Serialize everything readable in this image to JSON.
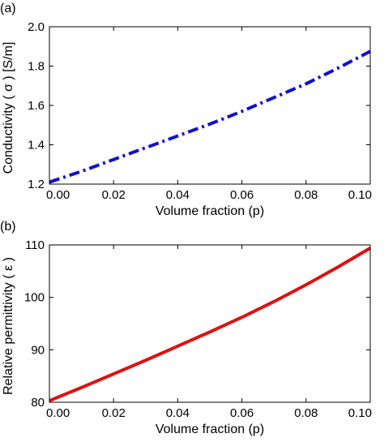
{
  "chart_data": [
    {
      "type": "line",
      "panel_label": "(a)",
      "xlabel": "Volume fraction (p)",
      "ylabel": "Conductivity ( σ ) [S/m]",
      "xlim": [
        0,
        0.1
      ],
      "ylim": [
        1.2,
        2.0
      ],
      "xticks": [
        "0.00",
        "0.02",
        "0.04",
        "0.06",
        "0.08",
        "0.10"
      ],
      "yticks": [
        "1.2",
        "1.4",
        "1.6",
        "1.8",
        "2.0"
      ],
      "grid": false,
      "series": [
        {
          "color": "#1010d0",
          "line_style": "dash-dot",
          "x": [
            0.0,
            0.01,
            0.02,
            0.03,
            0.04,
            0.05,
            0.06,
            0.07,
            0.08,
            0.09,
            0.1
          ],
          "y": [
            1.21,
            1.265,
            1.325,
            1.385,
            1.445,
            1.505,
            1.57,
            1.64,
            1.71,
            1.79,
            1.875
          ]
        }
      ]
    },
    {
      "type": "line",
      "panel_label": "(b)",
      "xlabel": "Volume fraction (p)",
      "ylabel": "Relative permittivity ( ε )",
      "xlim": [
        0,
        0.1
      ],
      "ylim": [
        80,
        110
      ],
      "xticks": [
        "0.00",
        "0.02",
        "0.04",
        "0.06",
        "0.08",
        "0.10"
      ],
      "yticks": [
        "80",
        "90",
        "100",
        "110"
      ],
      "grid": false,
      "series": [
        {
          "color": "#e01010",
          "line_style": "solid",
          "x": [
            0.0,
            0.01,
            0.02,
            0.03,
            0.04,
            0.05,
            0.06,
            0.07,
            0.08,
            0.09,
            0.1
          ],
          "y": [
            80.3,
            82.8,
            85.4,
            88.0,
            90.7,
            93.4,
            96.2,
            99.2,
            102.4,
            105.8,
            109.4
          ]
        }
      ]
    }
  ]
}
